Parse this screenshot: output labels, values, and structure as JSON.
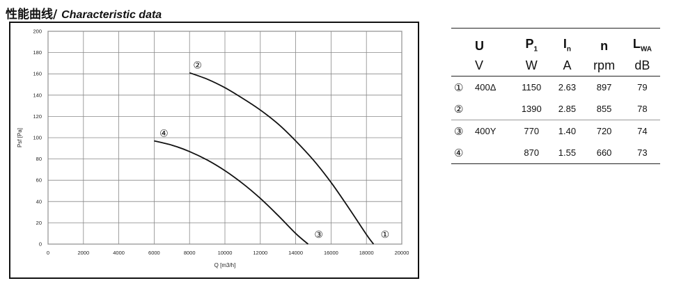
{
  "title": {
    "zh": "性能曲线",
    "sep": "/ ",
    "en": "Characteristic data"
  },
  "chart_data": {
    "type": "line",
    "xlabel": "Q [m3/h]",
    "ylabel": "Psf [Pa]",
    "xlim": [
      0,
      20000
    ],
    "ylim": [
      0,
      200
    ],
    "xticks": [
      0,
      2000,
      4000,
      6000,
      8000,
      10000,
      12000,
      14000,
      16000,
      18000,
      20000
    ],
    "yticks": [
      0,
      20,
      40,
      60,
      80,
      100,
      120,
      140,
      160,
      180,
      200
    ],
    "grid": true,
    "series": [
      {
        "name": "①",
        "x": [],
        "y": []
      },
      {
        "name": "②",
        "x": [
          8000,
          9000,
          10000,
          11000,
          12000,
          13000,
          14000,
          15000,
          16000,
          17000,
          18000,
          18400
        ],
        "y": [
          161,
          155,
          147,
          137,
          126,
          113,
          97,
          79,
          58,
          34,
          9,
          0
        ]
      },
      {
        "name": "③",
        "x": [],
        "y": []
      },
      {
        "name": "④",
        "x": [
          6000,
          7000,
          8000,
          9000,
          10000,
          11000,
          12000,
          13000,
          14000,
          14700
        ],
        "y": [
          97,
          93,
          87,
          79,
          69,
          57,
          43,
          27,
          10,
          0
        ]
      }
    ],
    "curve_labels": [
      {
        "text": "②",
        "x": 8450,
        "y": 165
      },
      {
        "text": "④",
        "x": 6550,
        "y": 101
      },
      {
        "text": "③",
        "x": 15300,
        "y": 6
      },
      {
        "text": "①",
        "x": 19050,
        "y": 6
      }
    ]
  },
  "table": {
    "headers": [
      {
        "sym": "U",
        "sub": "",
        "unit": "V"
      },
      {
        "sym": "P",
        "sub": "1",
        "unit": "W"
      },
      {
        "sym": "I",
        "sub": "n",
        "unit": "A"
      },
      {
        "sym": "n",
        "sub": "",
        "unit": "rpm"
      },
      {
        "sym": "L",
        "sub": "WA",
        "unit": "dB"
      }
    ],
    "rows": [
      {
        "idx": "①",
        "voltage": "400Δ",
        "p1": "1150",
        "in": "2.63",
        "n": "897",
        "lwa": "79"
      },
      {
        "idx": "②",
        "voltage": "",
        "p1": "1390",
        "in": "2.85",
        "n": "855",
        "lwa": "78"
      },
      {
        "idx": "③",
        "voltage": "400Y",
        "p1": "770",
        "in": "1.40",
        "n": "720",
        "lwa": "74"
      },
      {
        "idx": "④",
        "voltage": "",
        "p1": "870",
        "in": "1.55",
        "n": "660",
        "lwa": "73"
      }
    ]
  }
}
